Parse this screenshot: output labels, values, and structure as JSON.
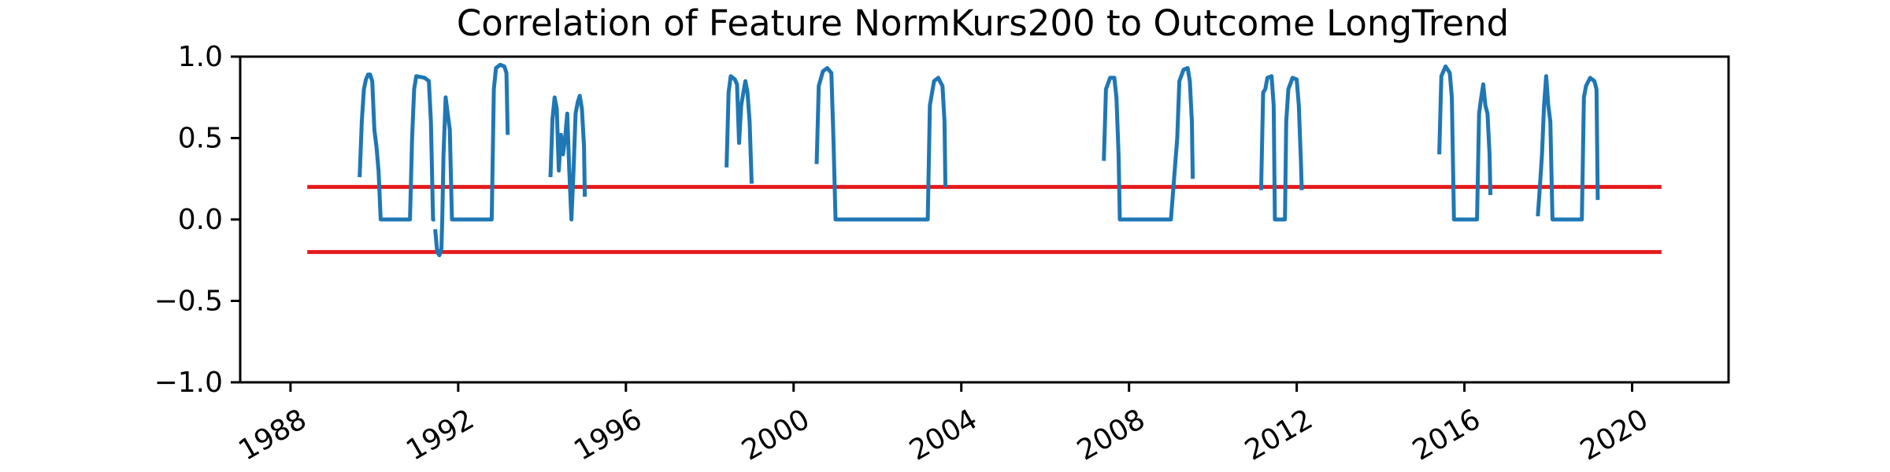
{
  "chart_data": {
    "type": "line",
    "title": "Correlation of Feature NormKurs200 to Outcome LongTrend",
    "xlabel": "",
    "ylabel": "",
    "x_axis_type": "date-year",
    "xlim": [
      1986.8,
      2022.3
    ],
    "ylim": [
      -1.0,
      1.0
    ],
    "x_ticks": [
      "1988",
      "1992",
      "1996",
      "2000",
      "2004",
      "2008",
      "2012",
      "2016",
      "2020"
    ],
    "y_ticks": [
      "1.0",
      "0.5",
      "0.0",
      "−0.5",
      "−1.0"
    ],
    "grid": false,
    "legend": "none",
    "series": [
      {
        "color": "#1f77b4",
        "segments": [
          [
            [
              1989.65,
              0.26
            ],
            [
              1989.7,
              0.6
            ],
            [
              1989.75,
              0.8
            ],
            [
              1989.8,
              0.86
            ],
            [
              1989.85,
              0.89
            ],
            [
              1989.9,
              0.89
            ],
            [
              1989.95,
              0.85
            ],
            [
              1990.0,
              0.55
            ],
            [
              1990.05,
              0.45
            ],
            [
              1990.1,
              0.3
            ],
            [
              1990.15,
              0.0
            ],
            [
              1990.3,
              0.0
            ],
            [
              1990.5,
              0.0
            ],
            [
              1990.7,
              0.0
            ],
            [
              1990.85,
              0.0
            ],
            [
              1990.9,
              0.5
            ],
            [
              1990.95,
              0.8
            ],
            [
              1991.0,
              0.88
            ],
            [
              1991.2,
              0.87
            ],
            [
              1991.3,
              0.85
            ],
            [
              1991.35,
              0.6
            ],
            [
              1991.4,
              0.0
            ],
            [
              1991.45,
              0.0
            ]
          ],
          [
            [
              1991.45,
              -0.06
            ],
            [
              1991.5,
              -0.2
            ],
            [
              1991.55,
              -0.22
            ],
            [
              1991.6,
              -0.18
            ],
            [
              1991.62,
              0.0
            ],
            [
              1991.65,
              0.4
            ],
            [
              1991.7,
              0.75
            ],
            [
              1991.75,
              0.65
            ],
            [
              1991.8,
              0.55
            ],
            [
              1991.85,
              0.0
            ],
            [
              1992.0,
              0.0
            ],
            [
              1992.3,
              0.0
            ],
            [
              1992.55,
              0.0
            ],
            [
              1992.8,
              0.0
            ],
            [
              1992.85,
              0.8
            ],
            [
              1992.9,
              0.93
            ],
            [
              1993.0,
              0.95
            ],
            [
              1993.1,
              0.94
            ],
            [
              1993.15,
              0.9
            ],
            [
              1993.18,
              0.52
            ]
          ],
          [
            [
              1994.2,
              0.26
            ],
            [
              1994.25,
              0.62
            ],
            [
              1994.3,
              0.75
            ],
            [
              1994.35,
              0.68
            ],
            [
              1994.4,
              0.3
            ],
            [
              1994.45,
              0.52
            ],
            [
              1994.5,
              0.4
            ],
            [
              1994.55,
              0.5
            ],
            [
              1994.6,
              0.65
            ],
            [
              1994.65,
              0.3
            ],
            [
              1994.7,
              0.0
            ],
            [
              1994.75,
              0.3
            ],
            [
              1994.8,
              0.65
            ],
            [
              1994.85,
              0.72
            ],
            [
              1994.9,
              0.76
            ],
            [
              1994.95,
              0.68
            ],
            [
              1995.0,
              0.45
            ],
            [
              1995.02,
              0.14
            ]
          ],
          [
            [
              1998.4,
              0.32
            ],
            [
              1998.45,
              0.78
            ],
            [
              1998.5,
              0.88
            ],
            [
              1998.6,
              0.86
            ],
            [
              1998.65,
              0.83
            ],
            [
              1998.7,
              0.47
            ],
            [
              1998.75,
              0.7
            ],
            [
              1998.85,
              0.85
            ],
            [
              1998.9,
              0.78
            ],
            [
              1998.95,
              0.6
            ],
            [
              1999.0,
              0.22
            ]
          ],
          [
            [
              2000.55,
              0.34
            ],
            [
              2000.6,
              0.82
            ],
            [
              2000.7,
              0.91
            ],
            [
              2000.8,
              0.93
            ],
            [
              2000.9,
              0.9
            ],
            [
              2000.95,
              0.5
            ],
            [
              2001.0,
              0.0
            ],
            [
              2001.5,
              0.0
            ],
            [
              2002.0,
              0.0
            ],
            [
              2002.5,
              0.0
            ],
            [
              2003.0,
              0.0
            ],
            [
              2003.2,
              0.0
            ],
            [
              2003.25,
              0.7
            ],
            [
              2003.35,
              0.85
            ],
            [
              2003.45,
              0.87
            ],
            [
              2003.55,
              0.82
            ],
            [
              2003.6,
              0.6
            ],
            [
              2003.62,
              0.2
            ]
          ],
          [
            [
              2007.4,
              0.36
            ],
            [
              2007.45,
              0.8
            ],
            [
              2007.55,
              0.87
            ],
            [
              2007.65,
              0.87
            ],
            [
              2007.7,
              0.75
            ],
            [
              2007.75,
              0.4
            ],
            [
              2007.78,
              0.0
            ],
            [
              2008.0,
              0.0
            ],
            [
              2008.5,
              0.0
            ],
            [
              2009.0,
              0.0
            ],
            [
              2009.15,
              0.5
            ],
            [
              2009.2,
              0.85
            ],
            [
              2009.3,
              0.92
            ],
            [
              2009.4,
              0.93
            ],
            [
              2009.45,
              0.85
            ],
            [
              2009.5,
              0.6
            ],
            [
              2009.52,
              0.25
            ]
          ],
          [
            [
              2011.15,
              0.18
            ],
            [
              2011.2,
              0.78
            ],
            [
              2011.25,
              0.8
            ],
            [
              2011.3,
              0.87
            ],
            [
              2011.4,
              0.88
            ],
            [
              2011.45,
              0.7
            ],
            [
              2011.48,
              0.0
            ],
            [
              2011.6,
              0.0
            ],
            [
              2011.72,
              0.0
            ],
            [
              2011.75,
              0.6
            ],
            [
              2011.8,
              0.8
            ],
            [
              2011.9,
              0.87
            ],
            [
              2012.0,
              0.86
            ],
            [
              2012.05,
              0.7
            ],
            [
              2012.1,
              0.35
            ],
            [
              2012.12,
              0.18
            ]
          ],
          [
            [
              2015.4,
              0.4
            ],
            [
              2015.45,
              0.88
            ],
            [
              2015.55,
              0.94
            ],
            [
              2015.65,
              0.9
            ],
            [
              2015.7,
              0.75
            ],
            [
              2015.75,
              0.0
            ],
            [
              2016.0,
              0.0
            ],
            [
              2016.3,
              0.0
            ],
            [
              2016.35,
              0.65
            ],
            [
              2016.4,
              0.75
            ],
            [
              2016.45,
              0.83
            ],
            [
              2016.5,
              0.7
            ],
            [
              2016.55,
              0.65
            ],
            [
              2016.6,
              0.4
            ],
            [
              2016.62,
              0.15
            ]
          ],
          [
            [
              2017.75,
              0.02
            ],
            [
              2017.8,
              0.2
            ],
            [
              2017.85,
              0.4
            ],
            [
              2017.9,
              0.7
            ],
            [
              2017.95,
              0.88
            ],
            [
              2018.0,
              0.7
            ],
            [
              2018.05,
              0.6
            ],
            [
              2018.1,
              0.0
            ],
            [
              2018.5,
              0.0
            ],
            [
              2018.8,
              0.0
            ],
            [
              2018.85,
              0.75
            ],
            [
              2018.9,
              0.82
            ],
            [
              2019.0,
              0.87
            ],
            [
              2019.1,
              0.85
            ],
            [
              2019.15,
              0.8
            ],
            [
              2019.18,
              0.12
            ]
          ]
        ]
      }
    ],
    "reference_lines": [
      {
        "color": "#e41a1c",
        "y": 0.2,
        "x": [
          1988.4,
          2020.7
        ]
      },
      {
        "color": "#e41a1c",
        "y": -0.2,
        "x": [
          1988.4,
          2020.7
        ]
      }
    ]
  }
}
